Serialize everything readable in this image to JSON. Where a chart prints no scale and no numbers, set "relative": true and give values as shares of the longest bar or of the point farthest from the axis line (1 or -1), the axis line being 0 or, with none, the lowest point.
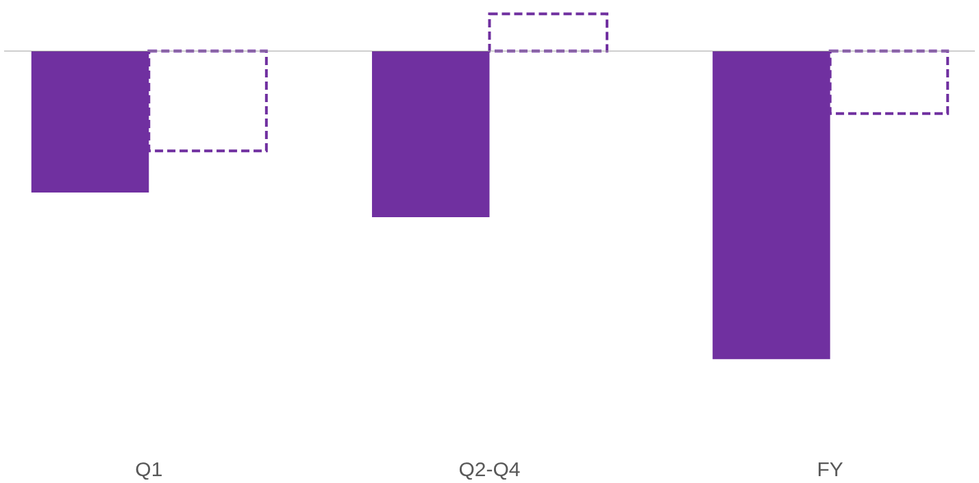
{
  "chart_data": {
    "type": "bar",
    "relative": true,
    "categories": [
      "Q1",
      "Q2-Q4",
      "FY"
    ],
    "grid": false,
    "legend": false,
    "series": [
      {
        "color": "#7030a0",
        "values": [
          -0.459,
          -0.539,
          -1
        ]
      },
      {
        "color": "#7030a0",
        "line_style": "dashed",
        "values": [
          -0.324,
          0.121,
          -0.203
        ]
      }
    ]
  }
}
